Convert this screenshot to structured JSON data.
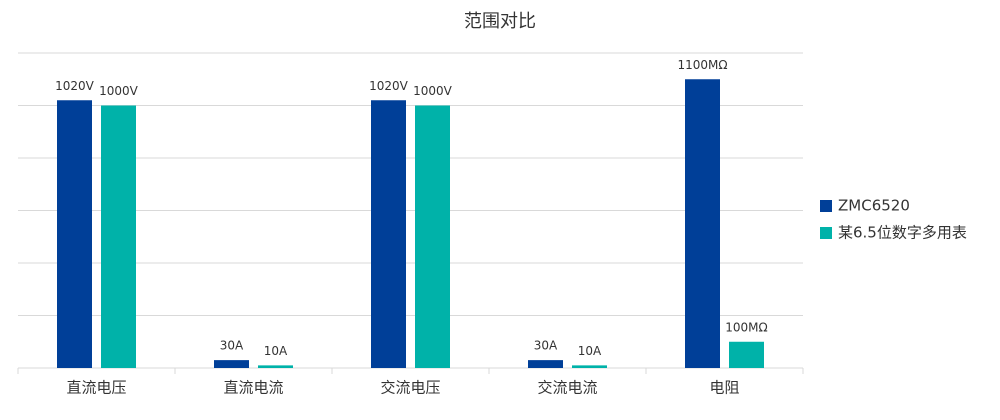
{
  "chart_data": {
    "type": "bar",
    "title": "范围对比",
    "categories": [
      "直流电压",
      "直流电流",
      "交流电压",
      "交流电流",
      "电阻"
    ],
    "series": [
      {
        "name": "ZMC6520",
        "color": "#003f98",
        "values": [
          1020,
          30,
          1020,
          30,
          1100
        ],
        "value_labels": [
          "1020V",
          "30A",
          "1020V",
          "30A",
          "1100MΩ"
        ]
      },
      {
        "name": "某6.5位数字多用表",
        "color": "#00b2a9",
        "values": [
          1000,
          10,
          1000,
          10,
          100
        ],
        "value_labels": [
          "1000V",
          "10A",
          "1000V",
          "10A",
          "100MΩ"
        ]
      }
    ],
    "ylim": [
      0,
      1200
    ],
    "yticks": [
      0,
      200,
      400,
      600,
      800,
      1000,
      1200
    ],
    "grid": true,
    "legend": "right"
  }
}
